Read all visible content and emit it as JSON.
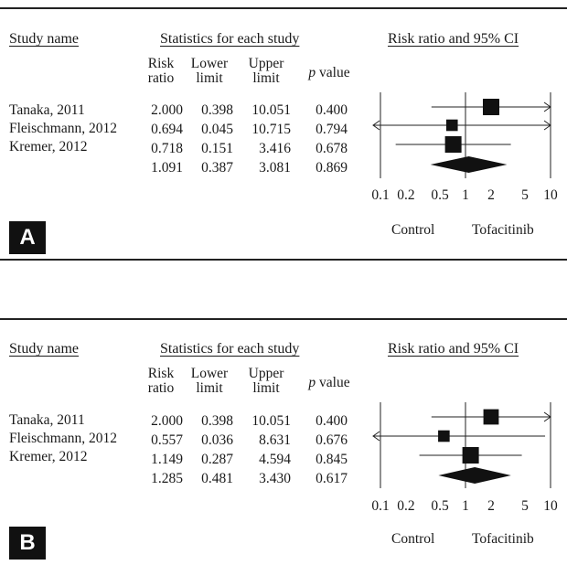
{
  "chart_data": [
    {
      "type": "forest",
      "panel_label": "A",
      "header_study": "Study name",
      "header_stats": "Statistics for each study",
      "header_plot": "Risk ratio and 95% CI",
      "col_risk": [
        "Risk",
        "ratio"
      ],
      "col_lower": [
        "Lower",
        "limit"
      ],
      "col_upper": [
        "Upper",
        "limit"
      ],
      "col_p": [
        "p",
        "value"
      ],
      "rows": [
        {
          "study": "Tanaka, 2011",
          "rr": "2.000",
          "lower": "0.398",
          "upper": "10.051",
          "p": "0.400",
          "weight": 1.0
        },
        {
          "study": "Fleischmann, 2012",
          "rr": "0.694",
          "lower": "0.045",
          "upper": "10.715",
          "p": "0.794",
          "weight": 0.55
        },
        {
          "study": "Kremer, 2012",
          "rr": "0.718",
          "lower": "0.151",
          "upper": "3.416",
          "p": "0.678",
          "weight": 1.0
        }
      ],
      "summary": {
        "rr": "1.091",
        "lower": "0.387",
        "upper": "3.081",
        "p": "0.869"
      },
      "x_scale": "log",
      "xlim": [
        0.1,
        10
      ],
      "x_ticks": [
        "0.1",
        "0.2",
        "0.5",
        "1",
        "2",
        "5",
        "10"
      ],
      "favours_left": "Control",
      "favours_right": "Tofacitinib"
    },
    {
      "type": "forest",
      "panel_label": "B",
      "header_study": "Study name",
      "header_stats": "Statistics for each study",
      "header_plot": "Risk ratio and 95% CI",
      "col_risk": [
        "Risk",
        "ratio"
      ],
      "col_lower": [
        "Lower",
        "limit"
      ],
      "col_upper": [
        "Upper",
        "limit"
      ],
      "col_p": [
        "p",
        "value"
      ],
      "rows": [
        {
          "study": "Tanaka, 2011",
          "rr": "2.000",
          "lower": "0.398",
          "upper": "10.051",
          "p": "0.400",
          "weight": 0.9
        },
        {
          "study": "Fleischmann, 2012",
          "rr": "0.557",
          "lower": "0.036",
          "upper": "8.631",
          "p": "0.676",
          "weight": 0.55
        },
        {
          "study": "Kremer, 2012",
          "rr": "1.149",
          "lower": "0.287",
          "upper": "4.594",
          "p": "0.845",
          "weight": 1.0
        }
      ],
      "summary": {
        "rr": "1.285",
        "lower": "0.481",
        "upper": "3.430",
        "p": "0.617"
      },
      "x_scale": "log",
      "xlim": [
        0.1,
        10
      ],
      "x_ticks": [
        "0.1",
        "0.2",
        "0.5",
        "1",
        "2",
        "5",
        "10"
      ],
      "favours_left": "Control",
      "favours_right": "Tofacitinib"
    }
  ]
}
